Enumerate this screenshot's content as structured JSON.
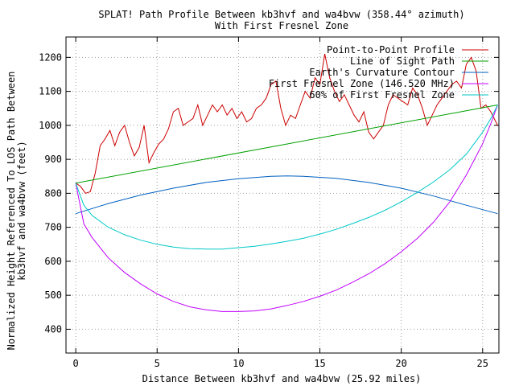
{
  "chart_data": {
    "type": "line",
    "title": "SPLAT! Path Profile Between kb3hvf and wa4bvw (358.44° azimuth)",
    "subtitle": "With First Fresnel Zone",
    "xlabel": "Distance Between kb3hvf and wa4bvw (25.92 miles)",
    "ylabel_line1": "Normalized Height Referenced To LOS Path Between",
    "ylabel_line2": "kb3hvf and wa4bvw (feet)",
    "xlim": [
      -0.6,
      26.0
    ],
    "ylim": [
      330,
      1260
    ],
    "x_ticks": [
      0,
      5,
      10,
      15,
      20,
      25
    ],
    "x_tick_labels": [
      "0",
      "5",
      "10",
      "15",
      "20",
      "25"
    ],
    "y_ticks": [
      400,
      500,
      600,
      700,
      800,
      900,
      1000,
      1100,
      1200
    ],
    "y_tick_labels": [
      "400",
      "500",
      "600",
      "700",
      "800",
      "900",
      "1000",
      "1100",
      "1200"
    ],
    "grid": true,
    "legend_position": "top-right",
    "series": [
      {
        "name": "Point-to-Point Profile",
        "color": "#cc0000",
        "x": [
          0,
          0.3,
          0.6,
          0.9,
          1.2,
          1.5,
          1.8,
          2.1,
          2.4,
          2.7,
          3.0,
          3.3,
          3.6,
          3.9,
          4.2,
          4.5,
          4.8,
          5.1,
          5.4,
          5.7,
          6.0,
          6.3,
          6.6,
          6.9,
          7.2,
          7.5,
          7.8,
          8.1,
          8.4,
          8.7,
          9.0,
          9.3,
          9.6,
          9.9,
          10.2,
          10.5,
          10.8,
          11.1,
          11.4,
          11.7,
          12.0,
          12.3,
          12.6,
          12.9,
          13.2,
          13.5,
          13.8,
          14.1,
          14.4,
          14.7,
          15.0,
          15.3,
          15.6,
          15.9,
          16.2,
          16.5,
          16.8,
          17.1,
          17.4,
          17.7,
          18.0,
          18.3,
          18.6,
          18.9,
          19.2,
          19.5,
          19.8,
          20.1,
          20.4,
          20.7,
          21.0,
          21.3,
          21.6,
          21.9,
          22.2,
          22.5,
          22.8,
          23.1,
          23.4,
          23.7,
          24.0,
          24.3,
          24.6,
          24.9,
          25.2,
          25.5,
          25.92
        ],
        "y": [
          830,
          820,
          800,
          805,
          860,
          940,
          960,
          985,
          940,
          980,
          1000,
          950,
          910,
          935,
          1000,
          890,
          920,
          945,
          960,
          990,
          1040,
          1050,
          1000,
          1010,
          1020,
          1060,
          1000,
          1030,
          1060,
          1040,
          1060,
          1030,
          1050,
          1020,
          1040,
          1010,
          1020,
          1050,
          1060,
          1080,
          1120,
          1130,
          1050,
          1000,
          1030,
          1020,
          1060,
          1100,
          1080,
          1140,
          1120,
          1210,
          1140,
          1100,
          1070,
          1090,
          1060,
          1030,
          1010,
          1040,
          980,
          960,
          980,
          1000,
          1060,
          1090,
          1080,
          1070,
          1060,
          1110,
          1090,
          1050,
          1000,
          1030,
          1060,
          1080,
          1100,
          1120,
          1130,
          1110,
          1180,
          1200,
          1160,
          1050,
          1060,
          1040,
          1000
        ]
      },
      {
        "name": "Line of Sight Path",
        "color": "#00a000",
        "x": [
          0,
          25.92
        ],
        "y": [
          830,
          1060
        ]
      },
      {
        "name": "Earth's Curvature Contour",
        "color": "#0060c0",
        "x": [
          0,
          2,
          4,
          6,
          8,
          10,
          12,
          13,
          14,
          16,
          18,
          20,
          22,
          24,
          25.92
        ],
        "y": [
          740,
          770,
          795,
          815,
          832,
          843,
          850,
          851,
          850,
          844,
          832,
          815,
          792,
          765,
          740
        ]
      },
      {
        "name": "First Fresnel Zone (146.520 MHz)",
        "color": "#c000ff",
        "x": [
          0,
          0.5,
          1,
          2,
          3,
          4,
          5,
          6,
          7,
          8,
          9,
          10,
          11,
          12,
          13,
          14,
          15,
          16,
          17,
          18,
          19,
          20,
          21,
          22,
          23,
          24,
          25,
          25.5,
          25.92
        ],
        "y": [
          830,
          710,
          670,
          610,
          567,
          533,
          504,
          482,
          466,
          457,
          452,
          452,
          454,
          460,
          470,
          482,
          497,
          515,
          538,
          563,
          593,
          628,
          668,
          716,
          776,
          854,
          946,
          1005,
          1060
        ]
      },
      {
        "name": "60% of First Fresnel Zone",
        "color": "#00c8c8",
        "x": [
          0,
          0.5,
          1,
          2,
          3,
          4,
          5,
          6,
          7,
          8,
          9,
          10,
          11,
          12,
          13,
          14,
          15,
          16,
          17,
          18,
          19,
          20,
          21,
          22,
          23,
          24,
          25,
          25.5,
          25.92
        ],
        "y": [
          830,
          765,
          735,
          700,
          678,
          662,
          650,
          642,
          637,
          636,
          636,
          640,
          644,
          651,
          659,
          668,
          680,
          694,
          711,
          729,
          750,
          775,
          803,
          834,
          870,
          915,
          980,
          1020,
          1060
        ]
      }
    ]
  }
}
